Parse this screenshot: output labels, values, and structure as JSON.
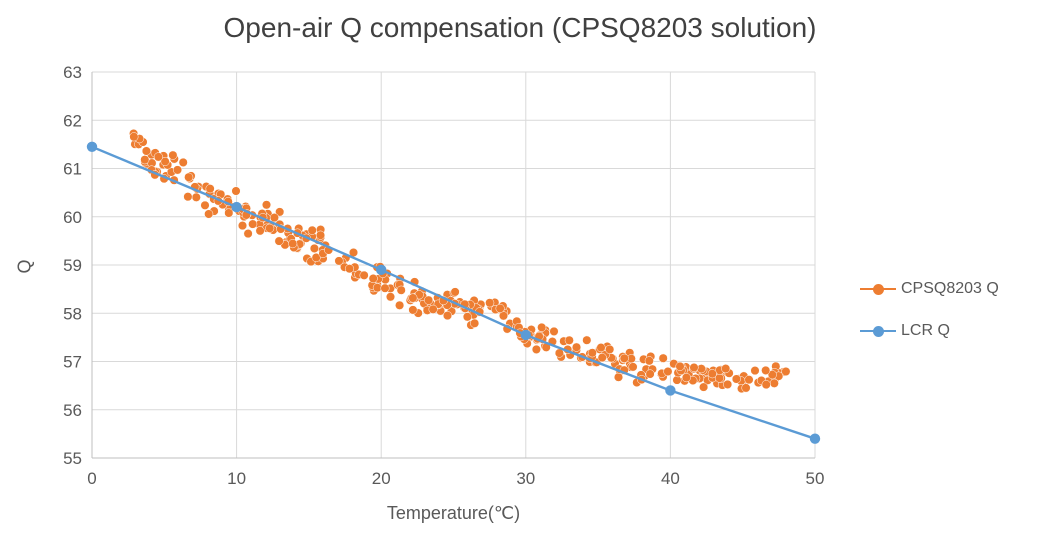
{
  "chart_data": {
    "type": "scatter",
    "title": "Open-air Q compensation (CPSQ8203 solution)",
    "xlabel": "Temperature(℃)",
    "ylabel": "Q",
    "xlim": [
      0,
      50
    ],
    "ylim": [
      55,
      63
    ],
    "x_ticks": [
      0,
      10,
      20,
      30,
      40,
      50
    ],
    "y_ticks": [
      55,
      56,
      57,
      58,
      59,
      60,
      61,
      62,
      63
    ],
    "grid": true,
    "legend_position": "right",
    "series": [
      {
        "name": "CPSQ8203 Q",
        "type": "scatter-cloud",
        "color": "#ED7D31",
        "x_range": [
          2.8,
          48
        ],
        "point_count": 380,
        "seed": 42,
        "noise_amp_start": 0.5,
        "noise_amp_end": 0.28,
        "trend": [
          [
            3,
            61.35
          ],
          [
            5,
            61.05
          ],
          [
            8,
            60.5
          ],
          [
            10,
            60.15
          ],
          [
            13,
            59.7
          ],
          [
            15,
            59.45
          ],
          [
            18,
            59.0
          ],
          [
            20,
            58.65
          ],
          [
            23,
            58.3
          ],
          [
            25,
            58.15
          ],
          [
            27,
            58.0
          ],
          [
            28.5,
            58.05
          ],
          [
            30,
            57.5
          ],
          [
            32,
            57.35
          ],
          [
            34,
            57.15
          ],
          [
            36,
            57.0
          ],
          [
            38,
            56.85
          ],
          [
            40,
            56.8
          ],
          [
            42,
            56.7
          ],
          [
            44,
            56.65
          ],
          [
            46,
            56.6
          ],
          [
            48,
            56.65
          ]
        ]
      },
      {
        "name": "LCR Q",
        "type": "line",
        "color": "#5B9BD5",
        "points": [
          [
            0,
            61.45
          ],
          [
            10,
            60.2
          ],
          [
            20,
            58.9
          ],
          [
            30,
            57.55
          ],
          [
            40,
            56.4
          ],
          [
            50,
            55.4
          ]
        ]
      }
    ]
  },
  "colors": {
    "grid": "#D9D9D9",
    "axis": "#BFBFBF",
    "tick_text": "#595959",
    "title_text": "#404040"
  }
}
